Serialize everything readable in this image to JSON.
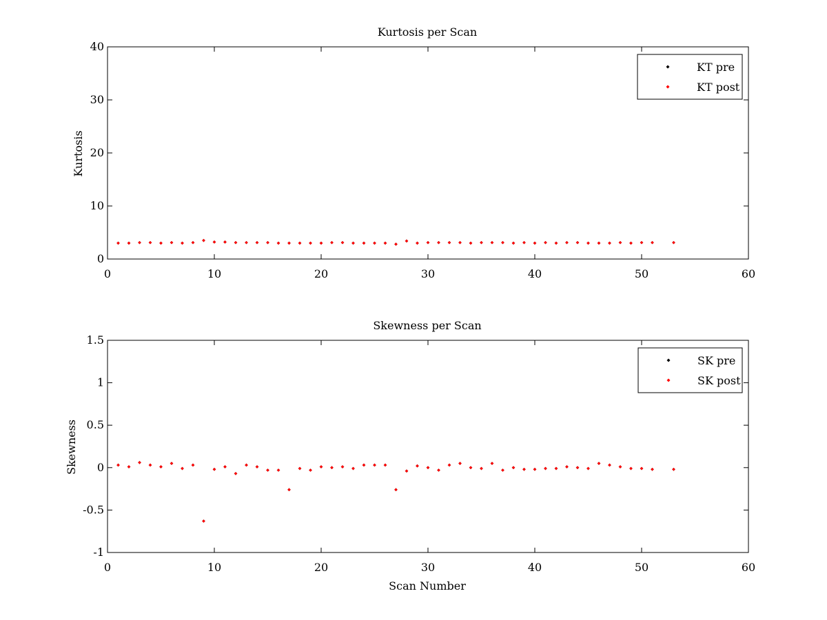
{
  "colors": {
    "pre": "#000000",
    "post": "#ff0000",
    "axes": "#000000",
    "background": "#ffffff"
  },
  "chart_data": [
    {
      "type": "scatter",
      "title": "Kurtosis per Scan",
      "xlabel": "",
      "ylabel": "Kurtosis",
      "xlim": [
        0,
        60
      ],
      "ylim": [
        0,
        40
      ],
      "xticks": [
        0,
        10,
        20,
        30,
        40,
        50,
        60
      ],
      "yticks": [
        0,
        10,
        20,
        30,
        40
      ],
      "legend_position": "top-right",
      "grid": false,
      "series": [
        {
          "name": "KT pre",
          "color": "#000000",
          "x": [
            1,
            2,
            3,
            4,
            5,
            6,
            7,
            8,
            9,
            10,
            11,
            12,
            13,
            14,
            15,
            16,
            17,
            18,
            19,
            20,
            21,
            22,
            23,
            24,
            25,
            26,
            27,
            28,
            29,
            30,
            31,
            32,
            33,
            34,
            35,
            36,
            37,
            38,
            39,
            40,
            41,
            42,
            43,
            44,
            45,
            46,
            47,
            48,
            49,
            50,
            51,
            53
          ],
          "y": [
            3.0,
            3.0,
            3.1,
            3.1,
            3.0,
            3.1,
            3.0,
            3.1,
            3.5,
            3.2,
            3.2,
            3.1,
            3.1,
            3.1,
            3.1,
            3.0,
            3.0,
            3.0,
            3.0,
            3.0,
            3.1,
            3.1,
            3.0,
            3.0,
            3.0,
            3.0,
            2.8,
            3.4,
            3.0,
            3.1,
            3.1,
            3.1,
            3.1,
            3.0,
            3.1,
            3.1,
            3.1,
            3.0,
            3.1,
            3.0,
            3.1,
            3.0,
            3.1,
            3.1,
            3.0,
            3.0,
            3.0,
            3.1,
            3.0,
            3.1,
            3.1,
            3.1
          ]
        },
        {
          "name": "KT post",
          "color": "#ff0000",
          "x": [
            1,
            2,
            3,
            4,
            5,
            6,
            7,
            8,
            9,
            10,
            11,
            12,
            13,
            14,
            15,
            16,
            17,
            18,
            19,
            20,
            21,
            22,
            23,
            24,
            25,
            26,
            27,
            28,
            29,
            30,
            31,
            32,
            33,
            34,
            35,
            36,
            37,
            38,
            39,
            40,
            41,
            42,
            43,
            44,
            45,
            46,
            47,
            48,
            49,
            50,
            51,
            53
          ],
          "y": [
            3.0,
            3.0,
            3.1,
            3.1,
            3.0,
            3.1,
            3.0,
            3.1,
            3.5,
            3.2,
            3.2,
            3.1,
            3.1,
            3.1,
            3.1,
            3.0,
            3.0,
            3.0,
            3.0,
            3.0,
            3.1,
            3.1,
            3.0,
            3.0,
            3.0,
            3.0,
            2.8,
            3.4,
            3.0,
            3.1,
            3.1,
            3.1,
            3.1,
            3.0,
            3.1,
            3.1,
            3.1,
            3.0,
            3.1,
            3.0,
            3.1,
            3.0,
            3.1,
            3.1,
            3.0,
            3.0,
            3.0,
            3.1,
            3.0,
            3.1,
            3.1,
            3.1
          ]
        }
      ]
    },
    {
      "type": "scatter",
      "title": "Skewness per Scan",
      "xlabel": "Scan Number",
      "ylabel": "Skewness",
      "xlim": [
        0,
        60
      ],
      "ylim": [
        -1,
        1.5
      ],
      "xticks": [
        0,
        10,
        20,
        30,
        40,
        50,
        60
      ],
      "yticks": [
        -1,
        -0.5,
        0,
        0.5,
        1,
        1.5
      ],
      "legend_position": "top-right",
      "grid": false,
      "series": [
        {
          "name": "SK pre",
          "color": "#000000",
          "x": [
            1,
            2,
            3,
            4,
            5,
            6,
            7,
            8,
            9,
            10,
            11,
            12,
            13,
            14,
            15,
            16,
            17,
            18,
            19,
            20,
            21,
            22,
            23,
            24,
            25,
            26,
            27,
            28,
            29,
            30,
            31,
            32,
            33,
            34,
            35,
            36,
            37,
            38,
            39,
            40,
            41,
            42,
            43,
            44,
            45,
            46,
            47,
            48,
            49,
            50,
            51,
            53
          ],
          "y": [
            0.03,
            0.01,
            0.06,
            0.03,
            0.01,
            0.05,
            -0.01,
            0.03,
            -0.63,
            -0.02,
            0.01,
            -0.07,
            0.03,
            0.01,
            -0.03,
            -0.03,
            -0.26,
            -0.01,
            -0.03,
            0.01,
            0.0,
            0.01,
            -0.01,
            0.03,
            0.03,
            0.03,
            -0.26,
            -0.04,
            0.02,
            0.0,
            -0.03,
            0.03,
            0.05,
            0.0,
            -0.01,
            0.05,
            -0.03,
            0.0,
            -0.02,
            -0.02,
            -0.01,
            -0.01,
            0.01,
            0.0,
            -0.01,
            0.05,
            0.03,
            0.01,
            -0.01,
            -0.01,
            -0.02,
            -0.02
          ]
        },
        {
          "name": "SK post",
          "color": "#ff0000",
          "x": [
            1,
            2,
            3,
            4,
            5,
            6,
            7,
            8,
            9,
            10,
            11,
            12,
            13,
            14,
            15,
            16,
            17,
            18,
            19,
            20,
            21,
            22,
            23,
            24,
            25,
            26,
            27,
            28,
            29,
            30,
            31,
            32,
            33,
            34,
            35,
            36,
            37,
            38,
            39,
            40,
            41,
            42,
            43,
            44,
            45,
            46,
            47,
            48,
            49,
            50,
            51,
            53
          ],
          "y": [
            0.03,
            0.01,
            0.06,
            0.03,
            0.01,
            0.05,
            -0.01,
            0.03,
            -0.63,
            -0.02,
            0.01,
            -0.07,
            0.03,
            0.01,
            -0.03,
            -0.03,
            -0.26,
            -0.01,
            -0.03,
            0.01,
            0.0,
            0.01,
            -0.01,
            0.03,
            0.03,
            0.03,
            -0.26,
            -0.04,
            0.02,
            0.0,
            -0.03,
            0.03,
            0.05,
            0.0,
            -0.01,
            0.05,
            -0.03,
            0.0,
            -0.02,
            -0.02,
            -0.01,
            -0.01,
            0.01,
            0.0,
            -0.01,
            0.05,
            0.03,
            0.01,
            -0.01,
            -0.01,
            -0.02,
            -0.02
          ]
        }
      ]
    }
  ]
}
